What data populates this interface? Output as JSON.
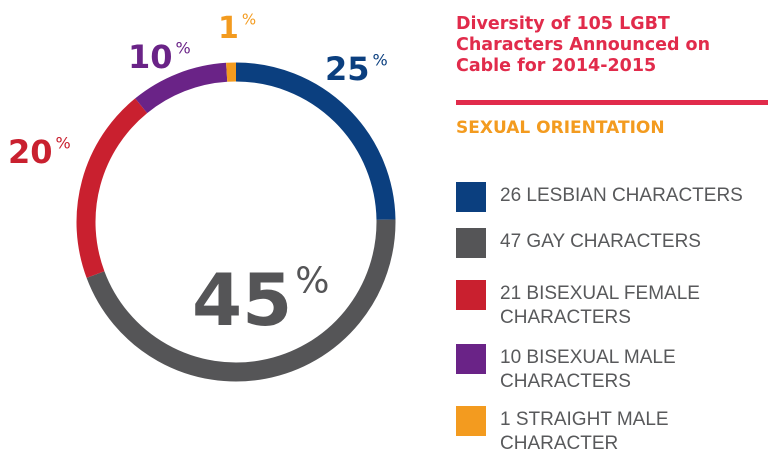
{
  "chart_data": {
    "type": "donut",
    "title": "Diversity of 105 LGBT Characters Announced on Cable for 2014-2015",
    "subtitle": "SEXUAL ORIENTATION",
    "categories": [
      "26 LESBIAN CHARACTERS",
      "47 GAY CHARACTERS",
      "21 BISEXUAL FEMALE CHARACTERS",
      "10 BISEXUAL MALE CHARACTERS",
      "1 STRAIGHT MALE CHARACTER"
    ],
    "values": [
      25,
      45,
      20,
      10,
      1
    ],
    "value_suffix": "%",
    "colors": [
      "#0b3f7f",
      "#555557",
      "#c9202f",
      "#6a2387",
      "#f39b1f"
    ]
  }
}
